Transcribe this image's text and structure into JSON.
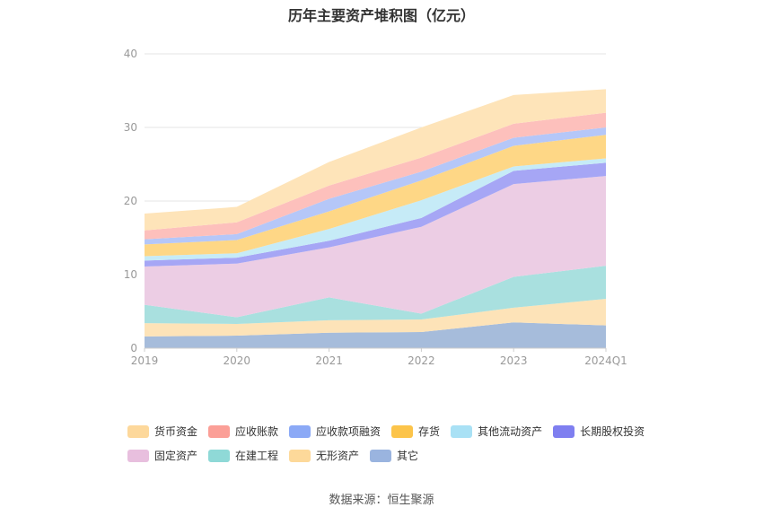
{
  "chart_data": {
    "type": "area",
    "stacked": true,
    "title": "历年主要资产堆积图（亿元）",
    "x": [
      "2019",
      "2020",
      "2021",
      "2022",
      "2023",
      "2024Q1"
    ],
    "ylim": [
      0,
      40
    ],
    "yticks": [
      0,
      10,
      20,
      30,
      40
    ],
    "grid": true,
    "legend_position": "bottom",
    "series": [
      {
        "name": "其它",
        "color": "#a6bcdb",
        "legend_color": "#9ab4df",
        "values": [
          1.6,
          1.7,
          2.1,
          2.2,
          3.5,
          3.1
        ]
      },
      {
        "name": "无形资产",
        "color": "#fde3b8",
        "legend_color": "#fdd99a",
        "values": [
          1.8,
          1.6,
          1.7,
          1.7,
          2.0,
          3.6
        ]
      },
      {
        "name": "在建工程",
        "color": "#a9e0df",
        "legend_color": "#8fd9d7",
        "values": [
          2.5,
          0.9,
          3.1,
          0.8,
          4.2,
          4.5
        ]
      },
      {
        "name": "固定资产",
        "color": "#eccde4",
        "legend_color": "#e8bfde",
        "values": [
          5.2,
          7.3,
          6.8,
          11.8,
          12.6,
          12.2
        ]
      },
      {
        "name": "长期股权投资",
        "color": "#a6a6f5",
        "legend_color": "#7f7ff0",
        "values": [
          0.8,
          0.8,
          0.9,
          1.2,
          1.8,
          1.8
        ]
      },
      {
        "name": "其他流动资产",
        "color": "#c6ebf7",
        "legend_color": "#a9e1f5",
        "values": [
          0.6,
          0.6,
          1.6,
          2.4,
          0.6,
          0.6
        ]
      },
      {
        "name": "存货",
        "color": "#fed786",
        "legend_color": "#fcc44a",
        "values": [
          1.6,
          1.8,
          2.4,
          2.7,
          2.8,
          3.2
        ]
      },
      {
        "name": "应收款项融资",
        "color": "#b5c7f8",
        "legend_color": "#8ba9f6",
        "values": [
          0.7,
          0.8,
          1.7,
          1.2,
          1.1,
          1.0
        ]
      },
      {
        "name": "应收账款",
        "color": "#fdc0bc",
        "legend_color": "#fb9f97",
        "values": [
          1.2,
          1.6,
          1.8,
          1.9,
          1.9,
          2.0
        ]
      },
      {
        "name": "货币资金",
        "color": "#fee4b9",
        "legend_color": "#fdd89b",
        "values": [
          2.3,
          2.1,
          3.2,
          4.1,
          3.9,
          3.2
        ]
      }
    ]
  },
  "legend_rows": [
    [
      "货币资金",
      "应收账款",
      "应收款项融资",
      "存货",
      "其他流动资产",
      "长期股权投资"
    ],
    [
      "固定资产",
      "在建工程",
      "无形资产",
      "其它"
    ]
  ],
  "source": "数据来源：恒生聚源"
}
